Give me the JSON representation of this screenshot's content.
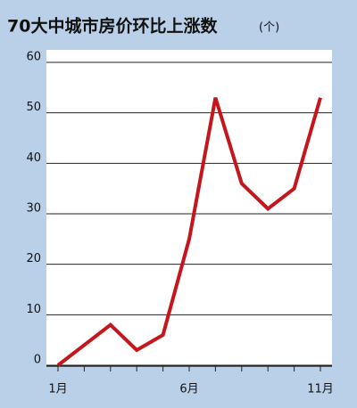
{
  "chart_data": {
    "type": "line",
    "title": "70大中城市房价环比上涨数",
    "unit": "(个)",
    "categories": [
      "1月",
      null,
      null,
      null,
      null,
      "6月",
      null,
      null,
      null,
      null,
      "11月"
    ],
    "series": [
      {
        "name": null,
        "color": "#c4161c",
        "values": [
          0,
          4,
          8,
          3,
          6,
          25,
          53,
          36,
          31,
          35,
          53
        ]
      }
    ],
    "ylim": [
      0,
      60
    ],
    "yticks": [
      0,
      10,
      20,
      30,
      40,
      50,
      60
    ],
    "grid": true
  }
}
